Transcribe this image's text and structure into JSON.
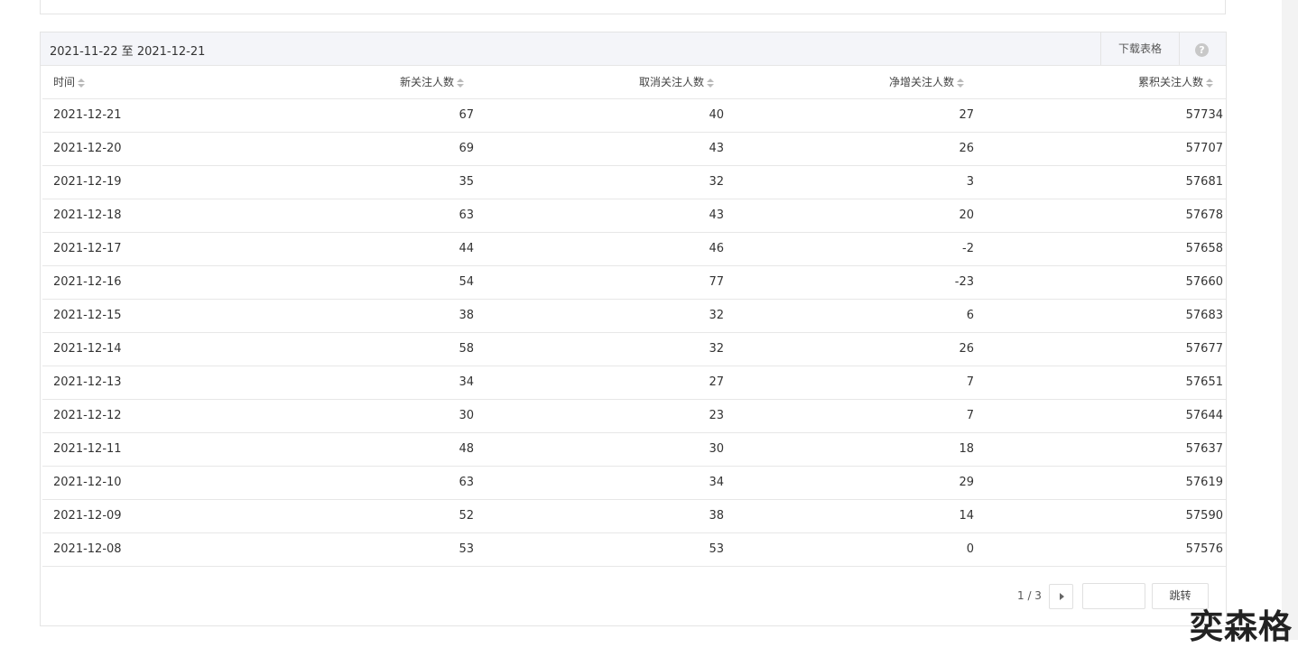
{
  "header": {
    "date_range": "2021-11-22 至 2021-12-21",
    "download": "下载表格",
    "help_icon": "?"
  },
  "table": {
    "columns": [
      "时间",
      "新关注人数",
      "取消关注人数",
      "净增关注人数",
      "累积关注人数"
    ],
    "rows": [
      [
        "2021-12-21",
        67,
        40,
        27,
        57734
      ],
      [
        "2021-12-20",
        69,
        43,
        26,
        57707
      ],
      [
        "2021-12-19",
        35,
        32,
        3,
        57681
      ],
      [
        "2021-12-18",
        63,
        43,
        20,
        57678
      ],
      [
        "2021-12-17",
        44,
        46,
        -2,
        57658
      ],
      [
        "2021-12-16",
        54,
        77,
        -23,
        57660
      ],
      [
        "2021-12-15",
        38,
        32,
        6,
        57683
      ],
      [
        "2021-12-14",
        58,
        32,
        26,
        57677
      ],
      [
        "2021-12-13",
        34,
        27,
        7,
        57651
      ],
      [
        "2021-12-12",
        30,
        23,
        7,
        57644
      ],
      [
        "2021-12-11",
        48,
        30,
        18,
        57637
      ],
      [
        "2021-12-10",
        63,
        34,
        29,
        57619
      ],
      [
        "2021-12-09",
        52,
        38,
        14,
        57590
      ],
      [
        "2021-12-08",
        53,
        53,
        0,
        57576
      ]
    ]
  },
  "pagination": {
    "page": "1 / 3",
    "jump": "跳转"
  },
  "watermark": "奕森格"
}
